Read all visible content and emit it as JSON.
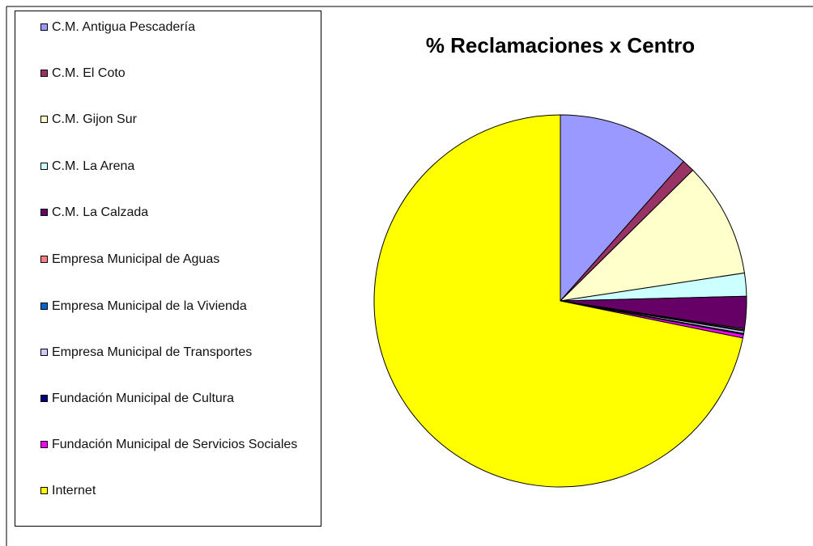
{
  "chart_data": {
    "type": "pie",
    "title": "% Reclamaciones x Centro",
    "categories": [
      "C.M. Antigua Pescadería",
      "C.M. El Coto",
      "C.M. Gijon Sur",
      "C.M. La Arena",
      "C.M. La Calzada",
      "Empresa Municipal de Aguas",
      "Empresa Municipal de la Vivienda",
      "Empresa Municipal de Transportes",
      "Fundación Municipal de Cultura",
      "Fundación Municipal de Servicios Sociales",
      "Internet"
    ],
    "values": [
      11.5,
      1.1,
      10.0,
      2.0,
      2.8,
      0.1,
      0.1,
      0.2,
      0.1,
      0.3,
      71.8
    ],
    "colors": [
      "#9999ff",
      "#993366",
      "#ffffcc",
      "#ccffff",
      "#660066",
      "#ff8080",
      "#0066cc",
      "#ccccff",
      "#000080",
      "#ff00ff",
      "#ffff00"
    ],
    "legend": "left"
  }
}
